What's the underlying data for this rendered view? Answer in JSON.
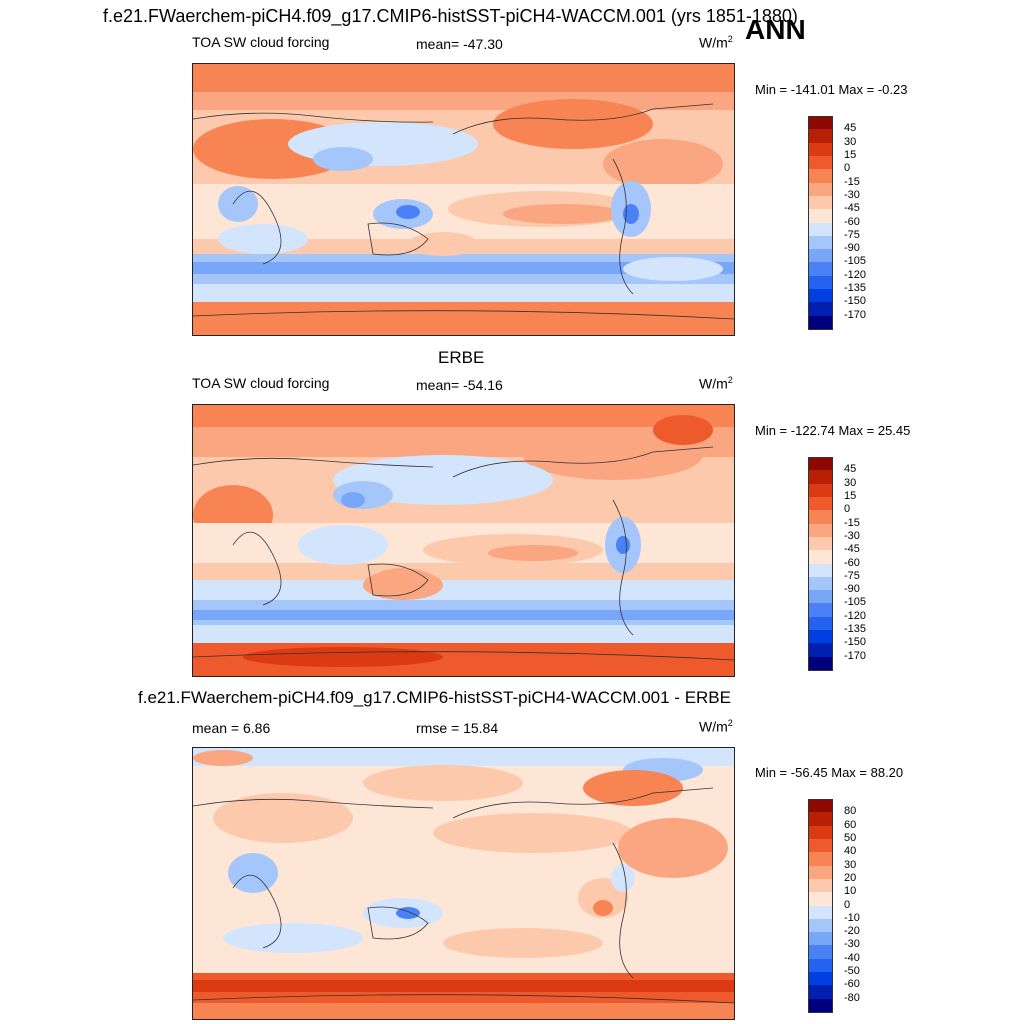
{
  "header": {
    "title": "f.e21.FWaerchem-piCH4.f09_g17.CMIP6-histSST-piCH4-WACCM.001 (yrs 1851-1880)",
    "season": "ANN"
  },
  "colors": {
    "scale1": [
      "#00007f",
      "#0020b0",
      "#0040e0",
      "#2462f0",
      "#4a82f5",
      "#78a6f8",
      "#a5c6fb",
      "#d3e4fd",
      "#fde6d6",
      "#fcc9ac",
      "#faa680",
      "#f78452",
      "#ef5a2c",
      "#dc3a12",
      "#b82006",
      "#8c0800"
    ],
    "scale3": [
      "#00007f",
      "#0020b0",
      "#0040e0",
      "#2462f0",
      "#4a82f5",
      "#78a6f8",
      "#a5c6fb",
      "#d3e4fd",
      "#fde6d6",
      "#fcc9ac",
      "#faa680",
      "#f78452",
      "#ef5a2c",
      "#dc3a12",
      "#b82006",
      "#8c0800"
    ]
  },
  "panels": [
    {
      "heading": "",
      "left_label": "TOA SW cloud forcing",
      "center_label": "mean= -47.30",
      "units": "W/m",
      "units_sup": "2",
      "minmax": "Min = -141.01 Max =  -0.23",
      "ticks": [
        "45",
        "30",
        "15",
        "0",
        "-15",
        "-30",
        "-45",
        "-60",
        "-75",
        "-90",
        "-105",
        "-120",
        "-135",
        "-150",
        "-170"
      ]
    },
    {
      "heading": "ERBE",
      "left_label": "TOA SW cloud forcing",
      "center_label": "mean= -54.16",
      "units": "W/m",
      "units_sup": "2",
      "minmax": "Min = -122.74 Max =  25.45",
      "ticks": [
        "45",
        "30",
        "15",
        "0",
        "-15",
        "-30",
        "-45",
        "-60",
        "-75",
        "-90",
        "-105",
        "-120",
        "-135",
        "-150",
        "-170"
      ]
    },
    {
      "heading": "f.e21.FWaerchem-piCH4.f09_g17.CMIP6-histSST-piCH4-WACCM.001 - ERBE",
      "left_label": "mean =   6.86",
      "center_label": "rmse =  15.84",
      "units": "W/m",
      "units_sup": "2",
      "minmax": "Min = -56.45 Max =  88.20",
      "ticks": [
        "80",
        "60",
        "50",
        "40",
        "30",
        "20",
        "10",
        "0",
        "-10",
        "-20",
        "-30",
        "-40",
        "-50",
        "-60",
        "-80"
      ]
    }
  ]
}
